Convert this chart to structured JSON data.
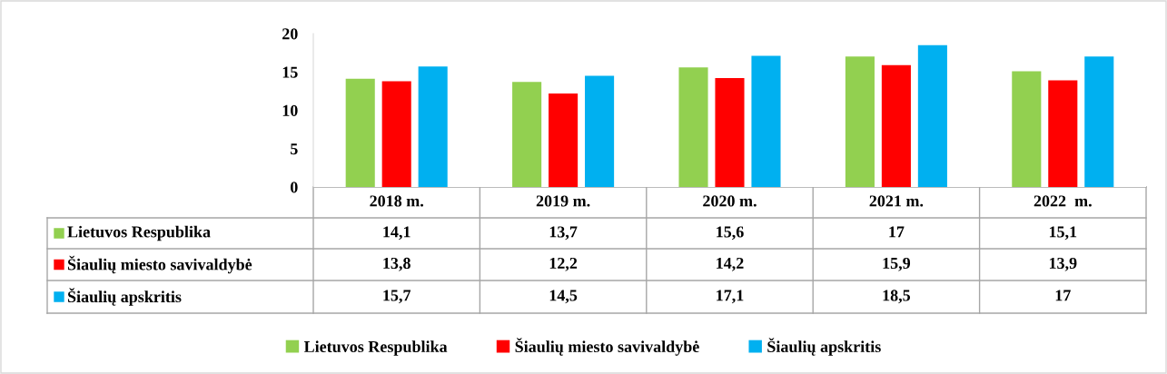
{
  "chart_data": {
    "type": "bar",
    "categories": [
      "2018 m.",
      "2019 m.",
      "2020 m.",
      "2021 m.",
      "2022  m."
    ],
    "series": [
      {
        "name": "Lietuvos Respublika",
        "color": "#92d050",
        "values": [
          14.1,
          13.7,
          15.6,
          17,
          15.1
        ],
        "value_labels": [
          "14,1",
          "13,7",
          "15,6",
          "17",
          "15,1"
        ]
      },
      {
        "name": "Šiaulių miesto savivaldybė",
        "color": "#ff0000",
        "values": [
          13.8,
          12.2,
          14.2,
          15.9,
          13.9
        ],
        "value_labels": [
          "13,8",
          "12,2",
          "14,2",
          "15,9",
          "13,9"
        ]
      },
      {
        "name": "Šiaulių apskritis",
        "color": "#00b0f0",
        "values": [
          15.7,
          14.5,
          17.1,
          18.5,
          17
        ],
        "value_labels": [
          "15,7",
          "14,5",
          "17,1",
          "18,5",
          "17"
        ]
      }
    ],
    "ylim": [
      0,
      20
    ],
    "yticks": [
      0,
      5,
      10,
      15,
      20
    ],
    "grid": false,
    "legend": "bottom"
  }
}
